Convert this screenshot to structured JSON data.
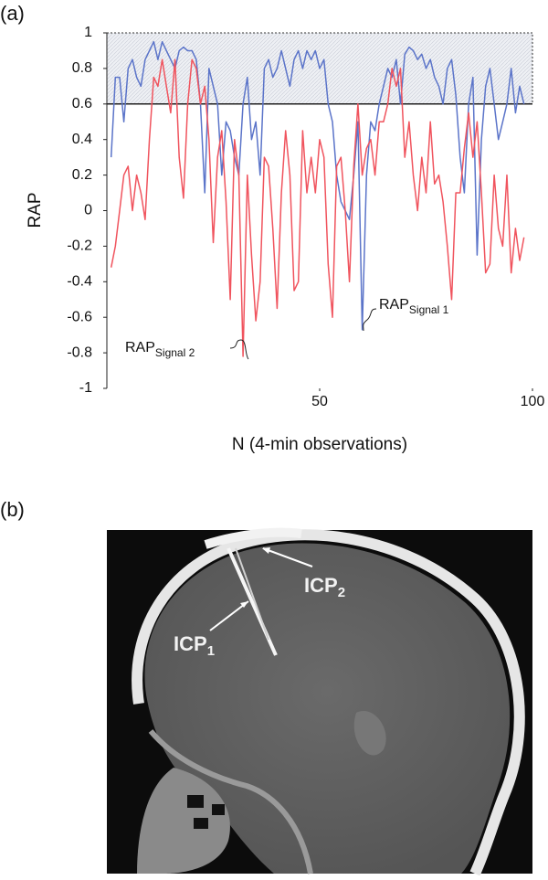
{
  "panels": {
    "a": "(a)",
    "b": "(b)"
  },
  "chart_data": {
    "type": "line",
    "x_label": "N (4-min observations)",
    "y_label": "RAP",
    "x": [
      1,
      2,
      3,
      4,
      5,
      6,
      7,
      8,
      9,
      10,
      11,
      12,
      13,
      14,
      15,
      16,
      17,
      18,
      19,
      20,
      21,
      22,
      23,
      24,
      25,
      26,
      27,
      28,
      29,
      30,
      31,
      32,
      33,
      34,
      35,
      36,
      37,
      38,
      39,
      40,
      41,
      42,
      43,
      44,
      45,
      46,
      47,
      48,
      49,
      50,
      51,
      52,
      53,
      54,
      55,
      56,
      57,
      58,
      59,
      60,
      61,
      62,
      63,
      64,
      65,
      66,
      67,
      68,
      69,
      70,
      71,
      72,
      73,
      74,
      75,
      76,
      77,
      78,
      79,
      80,
      81,
      82,
      83,
      84,
      85,
      86,
      87,
      88,
      89,
      90,
      91,
      92,
      93,
      94,
      95,
      96,
      97,
      98
    ],
    "series": [
      {
        "color": "#5b74c9",
        "values": [
          0.3,
          0.75,
          0.75,
          0.5,
          0.8,
          0.85,
          0.75,
          0.7,
          0.85,
          0.9,
          0.95,
          0.85,
          0.95,
          0.9,
          0.85,
          0.8,
          0.9,
          0.92,
          0.9,
          0.9,
          0.85,
          0.6,
          0.1,
          0.8,
          0.7,
          0.6,
          0.2,
          0.5,
          0.45,
          0.3,
          0.2,
          0.6,
          0.75,
          0.4,
          0.5,
          0.2,
          0.8,
          0.85,
          0.75,
          0.8,
          0.9,
          0.8,
          0.7,
          0.85,
          0.9,
          0.8,
          0.9,
          0.85,
          0.9,
          0.8,
          0.85,
          0.6,
          0.5,
          0.2,
          0.05,
          0,
          -0.05,
          0.2,
          0.5,
          -0.67,
          0.2,
          0.5,
          0.45,
          0.6,
          0.7,
          0.8,
          0.75,
          0.85,
          0.6,
          0.88,
          0.92,
          0.9,
          0.85,
          0.88,
          0.8,
          0.85,
          0.75,
          0.7,
          0.6,
          0.8,
          0.85,
          0.65,
          0.3,
          0.1,
          0.6,
          0.75,
          -0.25,
          0.4,
          0.7,
          0.8,
          0.6,
          0.4,
          0.5,
          0.6,
          0.8,
          0.55,
          0.7,
          0.6
        ]
      },
      {
        "color": "#f0545e",
        "values": [
          -0.32,
          -0.2,
          0,
          0.2,
          0.25,
          0,
          0.2,
          0.1,
          -0.05,
          0.4,
          0.75,
          0.7,
          0.85,
          0.7,
          0.55,
          0.85,
          0.3,
          0.07,
          0.6,
          0.85,
          0.8,
          0.6,
          0.7,
          0.4,
          -0.18,
          0.3,
          0.45,
          0.05,
          -0.5,
          0.4,
          0.2,
          -0.82,
          0.2,
          -0.25,
          -0.62,
          -0.4,
          0.3,
          0.25,
          -0.1,
          -0.55,
          0.1,
          0.45,
          0.2,
          -0.45,
          -0.4,
          0.45,
          0.1,
          0.3,
          0.1,
          0.4,
          0.3,
          -0.3,
          -0.6,
          0.25,
          0.3,
          0,
          -0.4,
          0.25,
          0.6,
          0.2,
          0.35,
          0.4,
          0.2,
          0.5,
          0.5,
          0.6,
          0.8,
          0.7,
          0.8,
          0.3,
          0.5,
          0.2,
          0,
          0.3,
          0.1,
          0.5,
          0.15,
          0.2,
          0.05,
          -0.2,
          -0.5,
          0.1,
          0.1,
          0.35,
          0.55,
          0.3,
          0.5,
          0.1,
          -0.35,
          -0.3,
          0.2,
          -0.1,
          -0.2,
          0.2,
          -0.35,
          -0.1,
          -0.28,
          -0.15
        ]
      }
    ],
    "xlim": [
      0,
      100
    ],
    "xticks": [
      50,
      100
    ],
    "ylim": [
      -1,
      1
    ],
    "yticks": [
      1,
      0.8,
      0.6,
      0.4,
      0.2,
      0,
      -0.2,
      -0.4,
      -0.6,
      -0.8,
      -1
    ],
    "shaded_band": {
      "from": 0.6,
      "to": 1
    },
    "annotations": [
      {
        "main": "RAP",
        "sub": "Signal 1"
      },
      {
        "main": "RAP",
        "sub": "Signal 2"
      }
    ]
  },
  "image_labels": [
    {
      "main": "ICP",
      "sub": "1"
    },
    {
      "main": "ICP",
      "sub": "2"
    }
  ]
}
